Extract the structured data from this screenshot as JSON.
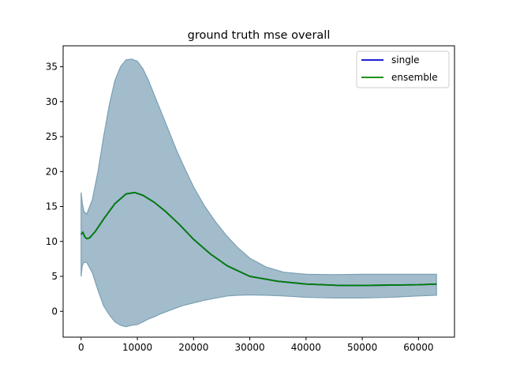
{
  "chart_data": {
    "type": "line",
    "title": "ground truth mse overall",
    "xlabel": "",
    "ylabel": "",
    "xlim": [
      -3200,
      66400
    ],
    "ylim": [
      -3.7,
      38.0
    ],
    "xticks": [
      0,
      10000,
      20000,
      30000,
      40000,
      50000,
      60000
    ],
    "xtick_labels": [
      "0",
      "10000",
      "20000",
      "30000",
      "40000",
      "50000",
      "60000"
    ],
    "yticks": [
      0,
      5,
      10,
      15,
      20,
      25,
      30,
      35
    ],
    "ytick_labels": [
      "0",
      "5",
      "10",
      "15",
      "20",
      "25",
      "30",
      "35"
    ],
    "grid": false,
    "legend_position": "upper right",
    "series": [
      {
        "name": "single",
        "color": "#0000cc",
        "x": [
          0,
          300,
          700,
          1000,
          1500,
          2500,
          4000,
          6000,
          8000,
          9500,
          11000,
          13000,
          15000,
          17500,
          20000,
          23000,
          26000,
          30000,
          35000,
          40000,
          46000,
          50000,
          55000,
          60000,
          63200
        ],
        "y": [
          11.0,
          11.3,
          10.6,
          10.4,
          10.5,
          11.4,
          13.2,
          15.4,
          16.8,
          17.0,
          16.6,
          15.6,
          14.3,
          12.4,
          10.3,
          8.2,
          6.5,
          5.0,
          4.3,
          3.9,
          3.7,
          3.7,
          3.75,
          3.8,
          3.9
        ]
      },
      {
        "name": "ensemble",
        "color": "#008000",
        "x": [
          0,
          300,
          700,
          1000,
          1500,
          2500,
          4000,
          6000,
          8000,
          9500,
          11000,
          13000,
          15000,
          17500,
          20000,
          23000,
          26000,
          30000,
          35000,
          40000,
          46000,
          50000,
          55000,
          60000,
          63200
        ],
        "y": [
          11.0,
          11.3,
          10.6,
          10.4,
          10.5,
          11.4,
          13.2,
          15.4,
          16.8,
          17.0,
          16.6,
          15.6,
          14.3,
          12.4,
          10.3,
          8.2,
          6.5,
          5.0,
          4.3,
          3.9,
          3.7,
          3.7,
          3.75,
          3.8,
          3.9
        ]
      }
    ],
    "band": {
      "color": "#a3bccb",
      "edge_color": "#7aa0b4",
      "x": [
        0,
        200,
        500,
        1000,
        2000,
        3000,
        4000,
        5000,
        6000,
        7000,
        8000,
        9000,
        10000,
        11000,
        12000,
        13000,
        14000,
        15000,
        16000,
        17000,
        18000,
        19000,
        20000,
        22000,
        24000,
        26000,
        28000,
        30000,
        33000,
        36000,
        40000,
        45000,
        50000,
        55000,
        60000,
        63200
      ],
      "upper": [
        17.0,
        15.5,
        14.3,
        13.9,
        16.0,
        20.0,
        25.0,
        29.5,
        33.0,
        35.0,
        36.0,
        36.1,
        35.8,
        34.7,
        33.0,
        31.0,
        29.0,
        27.0,
        25.0,
        23.0,
        21.2,
        19.5,
        17.8,
        15.0,
        12.7,
        10.7,
        9.0,
        7.6,
        6.3,
        5.6,
        5.3,
        5.25,
        5.3,
        5.3,
        5.3,
        5.3
      ],
      "lower": [
        5.0,
        6.5,
        7.0,
        7.0,
        5.5,
        3.0,
        0.8,
        -0.5,
        -1.5,
        -2.0,
        -2.2,
        -2.0,
        -1.9,
        -1.5,
        -1.1,
        -0.8,
        -0.4,
        -0.1,
        0.2,
        0.5,
        0.8,
        1.0,
        1.2,
        1.6,
        1.9,
        2.2,
        2.3,
        2.35,
        2.3,
        2.2,
        2.0,
        1.9,
        1.9,
        2.0,
        2.2,
        2.3
      ]
    }
  }
}
